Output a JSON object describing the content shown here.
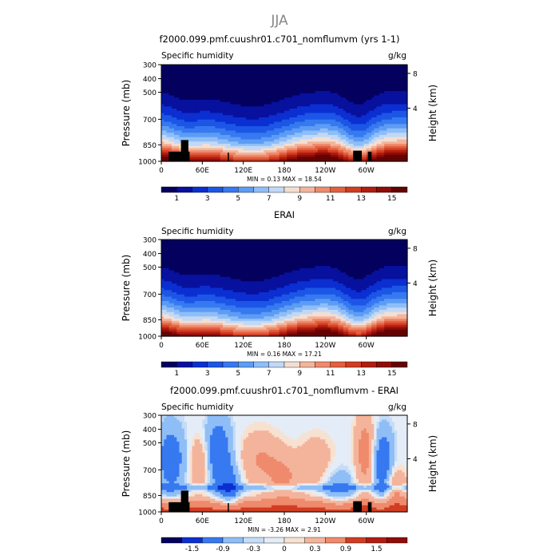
{
  "figure": {
    "season_title": "JJA",
    "panel_variable": "Specific humidity",
    "units": "g/kg",
    "y_left_label": "Pressure (mb)",
    "y_right_label": "Height (km)",
    "pressure_ticks": [
      "300",
      "400",
      "500",
      "700",
      "850",
      "1000"
    ],
    "height_ticks": [
      "8",
      "4"
    ],
    "lon_ticks": [
      "0",
      "60E",
      "120E",
      "180",
      "120W",
      "60W"
    ]
  },
  "chart_data": [
    {
      "type": "heatmap",
      "title": "f2000.099.pmf.cuushr01.c701_nomflumvm (yrs 1-1)",
      "variable": "Specific humidity",
      "units": "g/kg",
      "stats": "MIN =    0.13   MAX =   18.54",
      "min": 0.13,
      "max": 18.54,
      "colorbar_labels": [
        "1",
        "3",
        "5",
        "7",
        "9",
        "11",
        "13",
        "15"
      ],
      "colors": [
        "#04005e",
        "#08109e",
        "#0b2fd1",
        "#1c56e6",
        "#3779f0",
        "#5d9cf4",
        "#8fbef7",
        "#c1d8f6",
        "#f3dfd2",
        "#f4b49c",
        "#ef8a6c",
        "#e3603f",
        "#d13d22",
        "#b11d10",
        "#8f0c07",
        "#640303"
      ],
      "pattern": "moist"
    },
    {
      "type": "heatmap",
      "title": "ERAI",
      "variable": "Specific humidity",
      "units": "g/kg",
      "stats": "MIN =    0.16   MAX =   17.21",
      "min": 0.16,
      "max": 17.21,
      "colorbar_labels": [
        "1",
        "3",
        "5",
        "7",
        "9",
        "11",
        "13",
        "15"
      ],
      "colors": [
        "#04005e",
        "#08109e",
        "#0b2fd1",
        "#1c56e6",
        "#3779f0",
        "#5d9cf4",
        "#8fbef7",
        "#c1d8f6",
        "#f3dfd2",
        "#f4b49c",
        "#ef8a6c",
        "#e3603f",
        "#d13d22",
        "#b11d10",
        "#8f0c07",
        "#640303"
      ],
      "pattern": "moist"
    },
    {
      "type": "heatmap",
      "title": "f2000.099.pmf.cuushr01.c701_nomflumvm - ERAI",
      "variable": "Specific humidity",
      "units": "g/kg",
      "stats": "MIN =  -3.26   MAX =    2.91",
      "min": -3.26,
      "max": 2.91,
      "colorbar_labels": [
        "-1.5",
        "-0.9",
        "-0.3",
        "0",
        "0.3",
        "0.9",
        "1.5"
      ],
      "colors": [
        "#04005e",
        "#0b2fd1",
        "#3779f0",
        "#8fbef7",
        "#c6dcf6",
        "#e4edf7",
        "#f7e1d0",
        "#f4b49c",
        "#ef8a6c",
        "#d13d22",
        "#b11d10",
        "#8f0c07"
      ],
      "pattern": "diff"
    }
  ]
}
